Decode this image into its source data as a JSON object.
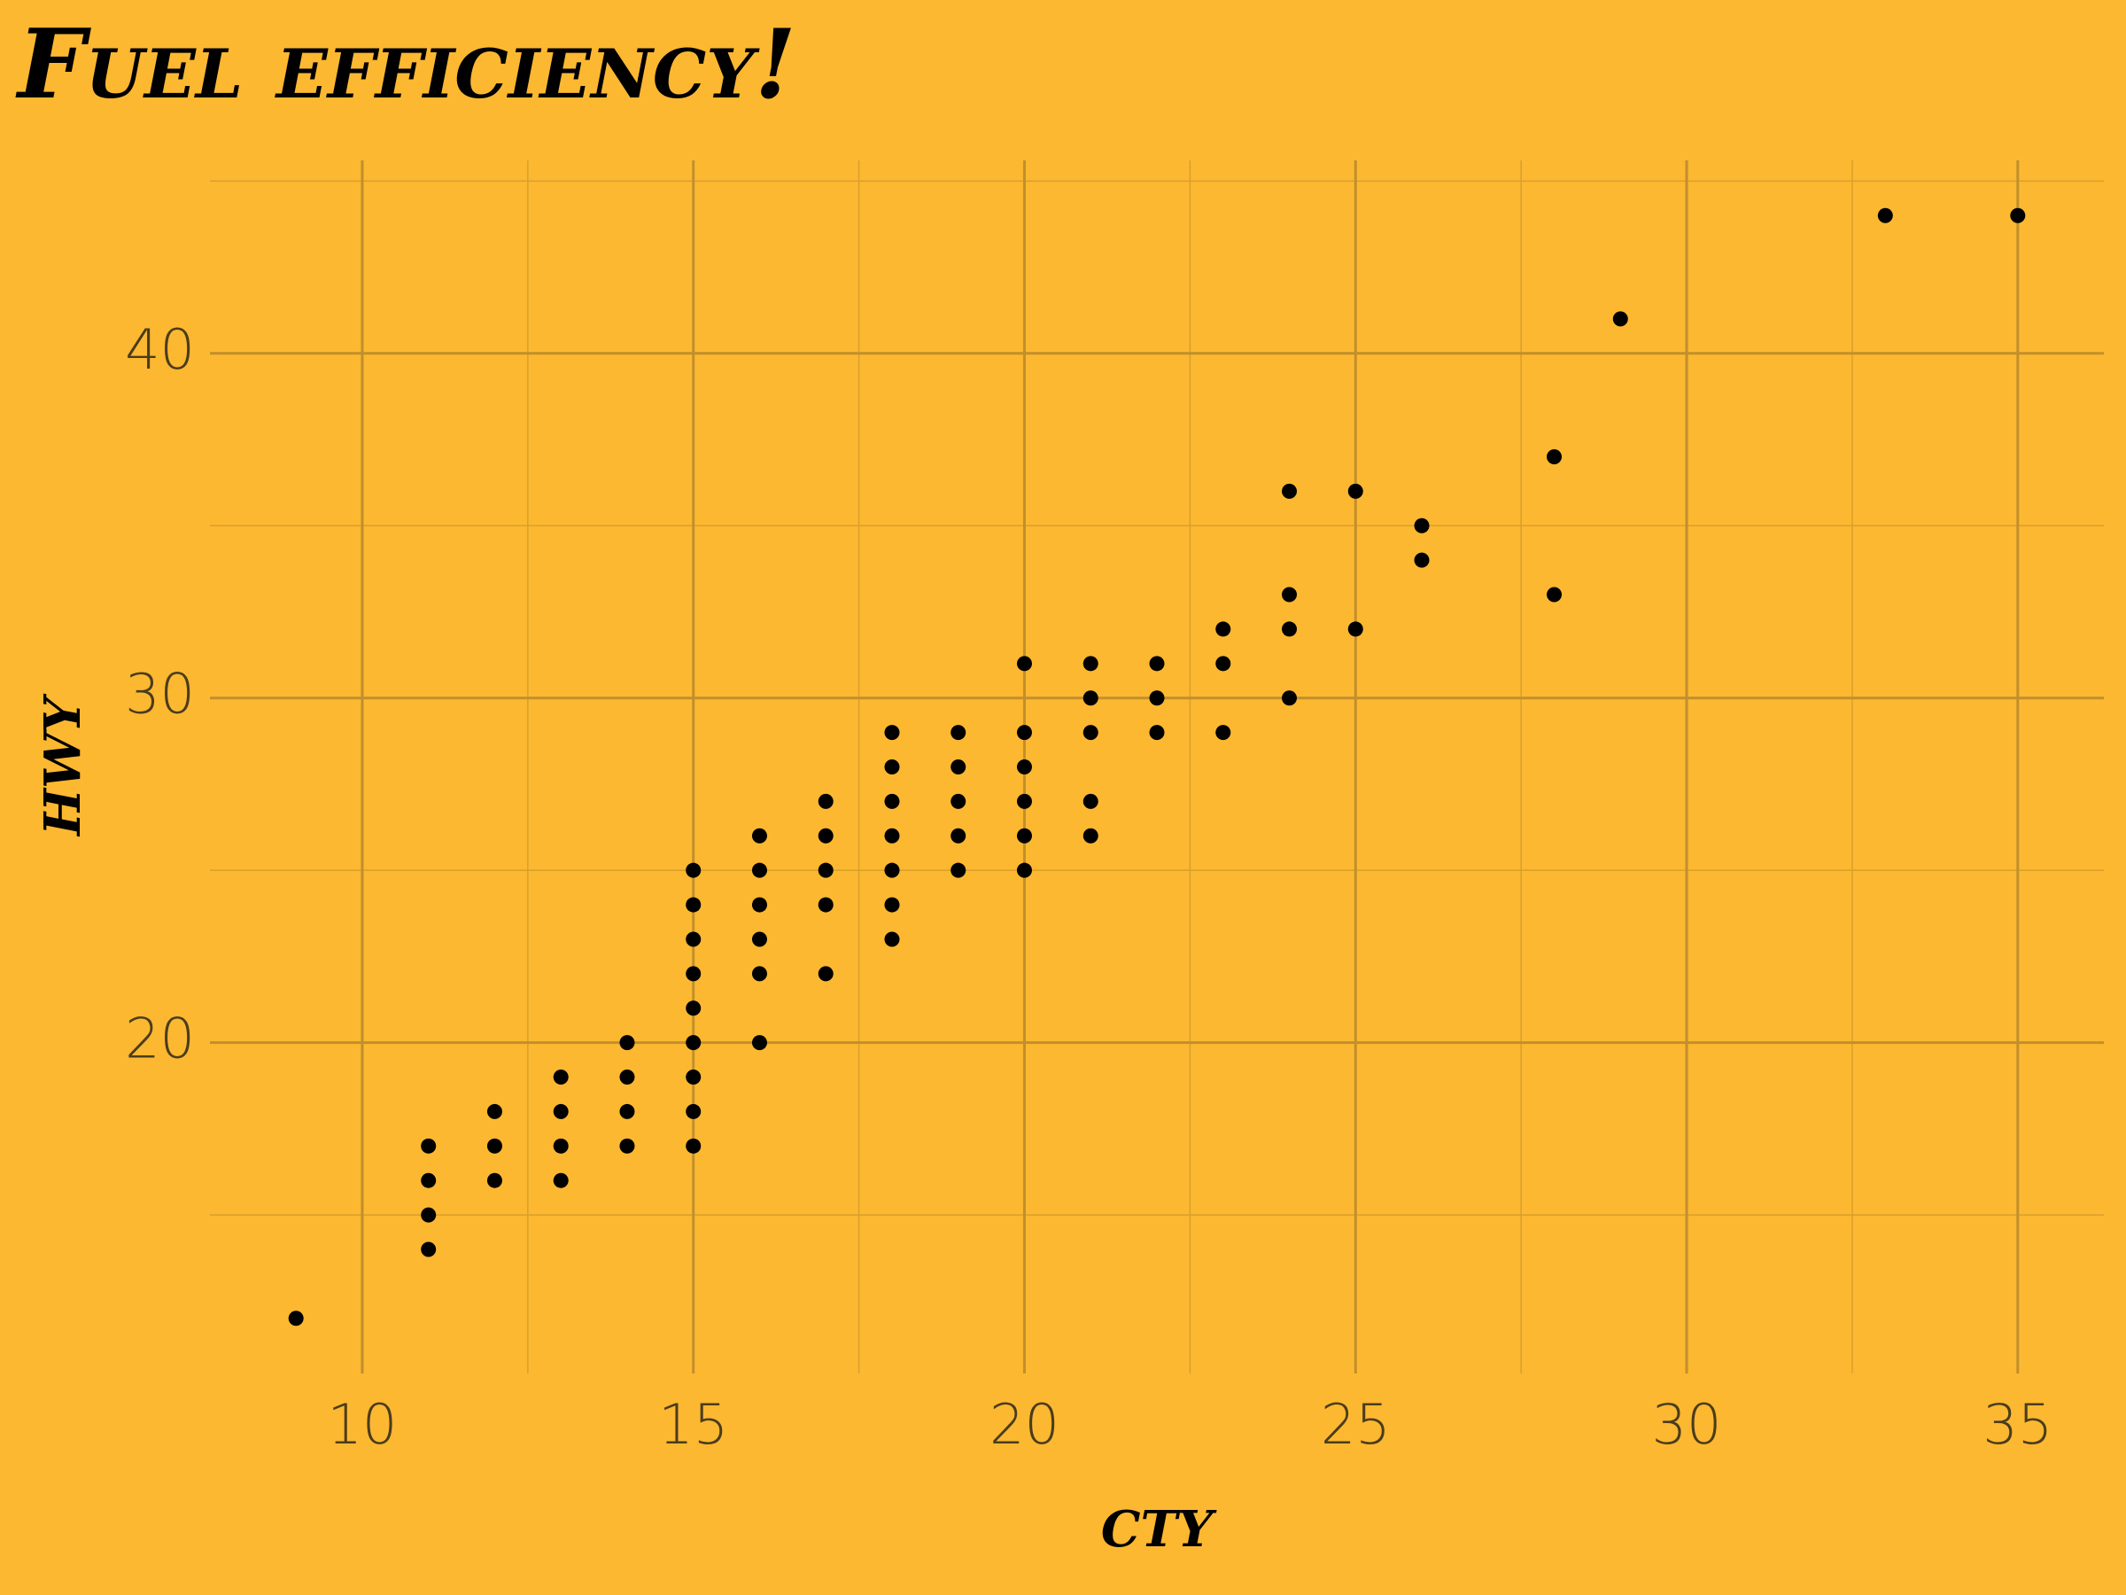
{
  "chart_data": {
    "type": "scatter",
    "title": "Fuel efficiency!",
    "xlabel": "cty",
    "ylabel": "hwy",
    "x": [
      9,
      11,
      11,
      11,
      11,
      12,
      12,
      12,
      13,
      13,
      13,
      13,
      14,
      14,
      14,
      14,
      15,
      15,
      15,
      15,
      15,
      15,
      15,
      15,
      15,
      16,
      16,
      16,
      16,
      16,
      16,
      17,
      17,
      17,
      17,
      17,
      18,
      18,
      18,
      18,
      18,
      18,
      18,
      19,
      19,
      19,
      19,
      19,
      20,
      20,
      20,
      20,
      20,
      20,
      21,
      21,
      21,
      21,
      21,
      22,
      22,
      22,
      23,
      23,
      23,
      24,
      24,
      24,
      24,
      25,
      25,
      26,
      26,
      28,
      28,
      29,
      33,
      35
    ],
    "values": [
      12,
      14,
      15,
      16,
      17,
      16,
      17,
      18,
      16,
      17,
      18,
      19,
      17,
      18,
      19,
      20,
      17,
      18,
      19,
      20,
      21,
      22,
      23,
      24,
      25,
      20,
      22,
      23,
      24,
      25,
      26,
      22,
      24,
      25,
      26,
      27,
      23,
      24,
      25,
      26,
      27,
      28,
      29,
      25,
      26,
      27,
      28,
      29,
      25,
      26,
      27,
      28,
      29,
      31,
      26,
      27,
      29,
      30,
      31,
      29,
      30,
      31,
      29,
      31,
      32,
      30,
      32,
      33,
      36,
      32,
      36,
      34,
      35,
      33,
      37,
      41,
      44,
      44
    ],
    "color": "#000000",
    "xlim": [
      7.7,
      36.3
    ],
    "ylim": [
      10.4,
      45.6
    ],
    "xticks": [
      10,
      15,
      20,
      25,
      30,
      35
    ],
    "yticks": [
      20,
      30,
      40
    ],
    "xminor": [
      12.5,
      17.5,
      22.5,
      27.5,
      32.5
    ],
    "yminor": [
      15,
      25,
      35,
      45
    ],
    "grid": true
  }
}
